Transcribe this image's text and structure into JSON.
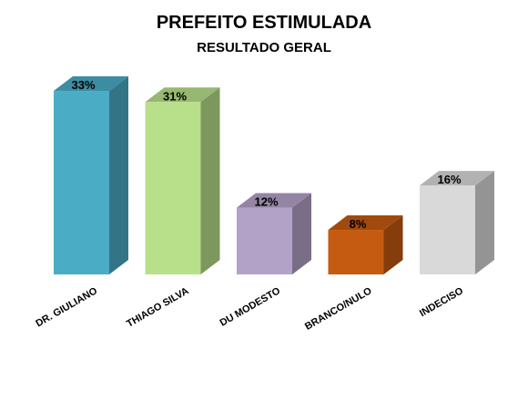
{
  "chart_data": {
    "type": "bar",
    "title": "PREFEITO ESTIMULADA",
    "subtitle": "RESULTADO GERAL",
    "categories": [
      "DR. GIULIANO",
      "THIAGO SILVA",
      "DU MODESTO",
      "BRANCO/NULO",
      "INDECISO"
    ],
    "values": [
      33,
      31,
      12,
      8,
      16
    ],
    "value_labels": [
      "33%",
      "31%",
      "12%",
      "8%",
      "16%"
    ],
    "colors": [
      "#4BACC6",
      "#B8E08A",
      "#B3A2C7",
      "#C55A11",
      "#D9D9D9"
    ],
    "style": "3d-column",
    "grid": false,
    "legend": "none"
  }
}
